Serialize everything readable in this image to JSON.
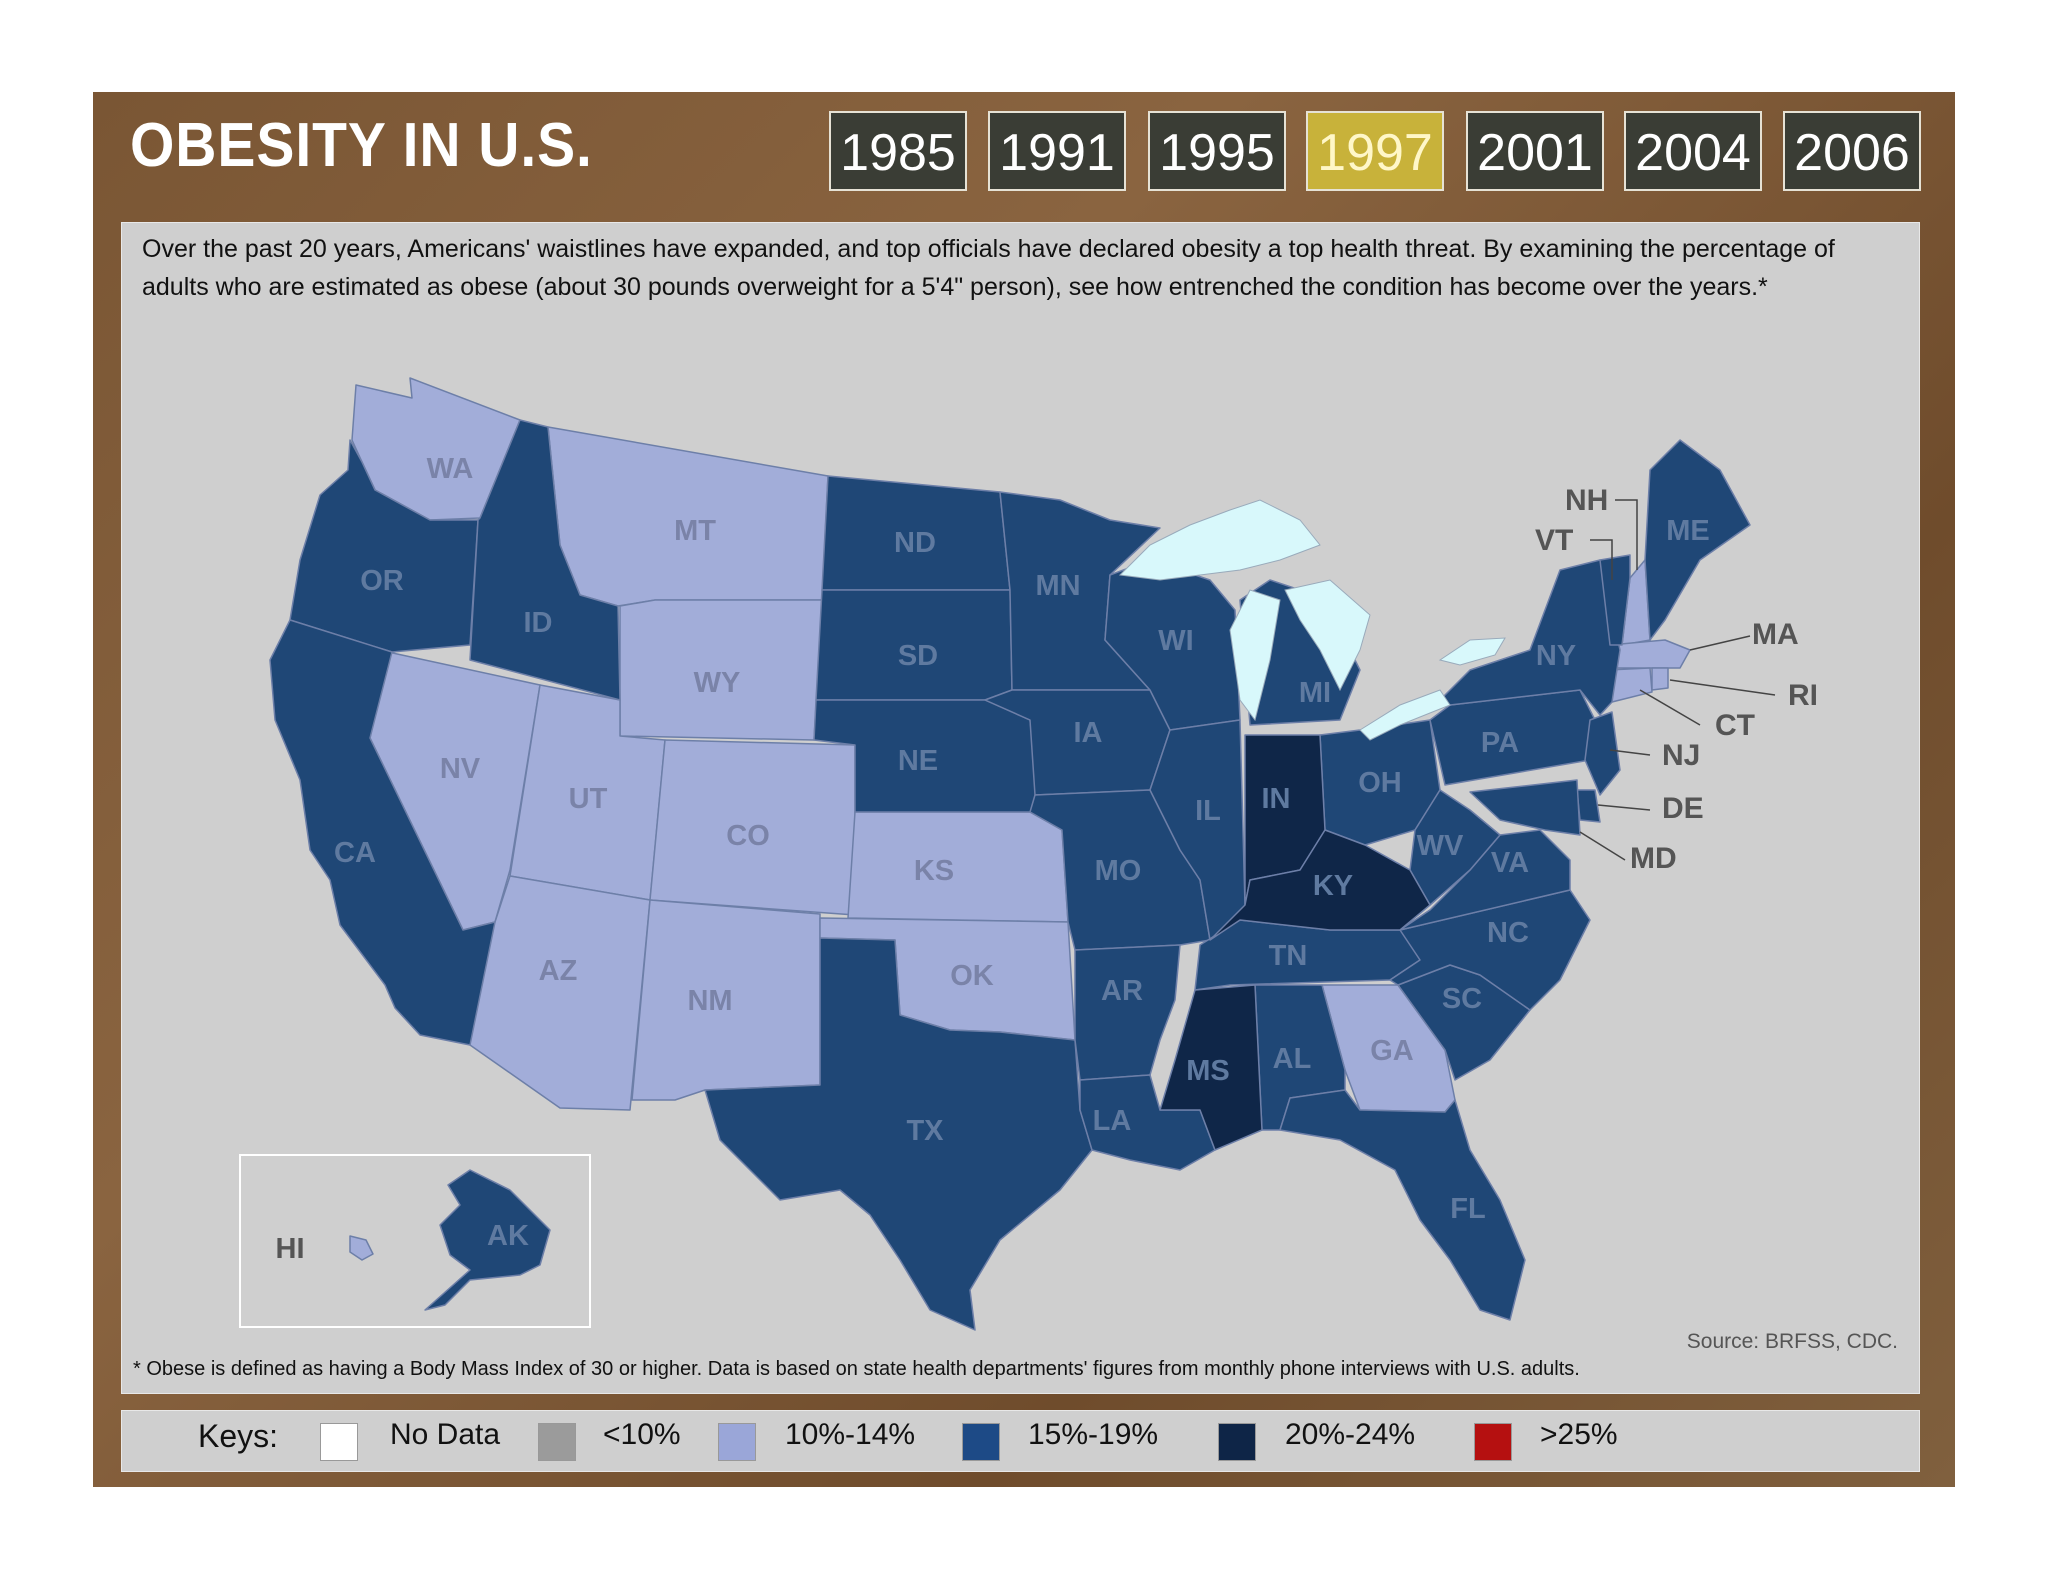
{
  "header": {
    "title": "OBESITY IN U.S.",
    "years": [
      "1985",
      "1991",
      "1995",
      "1997",
      "2001",
      "2004",
      "2006"
    ],
    "active_year": "1997"
  },
  "intro_text": "Over the past 20 years, Americans' waistlines have expanded, and top officials have declared obesity a top health threat. By examining the percentage of adults who are estimated as obese (about 30 pounds overweight for a 5'4\" person), see how entrenched the condition has become over the years.*",
  "footnote": "* Obese is defined as having a Body Mass Index of 30 or higher. Data is based on state health departments' figures from monthly phone interviews with U.S. adults.",
  "source": "Source: BRFSS, CDC.",
  "legend": {
    "title": "Keys:",
    "items": [
      {
        "label": "No Data",
        "color": "#ffffff"
      },
      {
        "label": "<10%",
        "color": "#9b9b9b"
      },
      {
        "label": "10%-14%",
        "color": "#9aa6d8"
      },
      {
        "label": "15%-19%",
        "color": "#1d4a86"
      },
      {
        "label": "20%-24%",
        "color": "#0e2547"
      },
      {
        "label": ">25%",
        "color": "#b51010"
      }
    ]
  },
  "colors": {
    "c10_14": "#a2add9",
    "c15_19": "#1f4776",
    "c20_24": "#0f2648",
    "lake": "#d8f8fb",
    "active_year": "#c8b23a"
  },
  "states": {
    "WA": "WA",
    "OR": "OR",
    "CA": "CA",
    "ID": "ID",
    "NV": "NV",
    "MT": "MT",
    "WY": "WY",
    "UT": "UT",
    "AZ": "AZ",
    "CO": "CO",
    "NM": "NM",
    "ND": "ND",
    "SD": "SD",
    "NE": "NE",
    "KS": "KS",
    "OK": "OK",
    "TX": "TX",
    "MN": "MN",
    "IA": "IA",
    "MO": "MO",
    "AR": "AR",
    "LA": "LA",
    "WI": "WI",
    "IL": "IL",
    "MS": "MS",
    "AL": "AL",
    "TN": "TN",
    "KY": "KY",
    "IN": "IN",
    "MI": "MI",
    "OH": "OH",
    "GA": "GA",
    "FL": "FL",
    "SC": "SC",
    "NC": "NC",
    "VA": "VA",
    "WV": "WV",
    "PA": "PA",
    "NY": "NY",
    "ME": "ME",
    "NH": "NH",
    "VT": "VT",
    "MA": "MA",
    "RI": "RI",
    "CT": "CT",
    "NJ": "NJ",
    "DE": "DE",
    "MD": "MD",
    "HI": "HI",
    "AK": "AK"
  }
}
